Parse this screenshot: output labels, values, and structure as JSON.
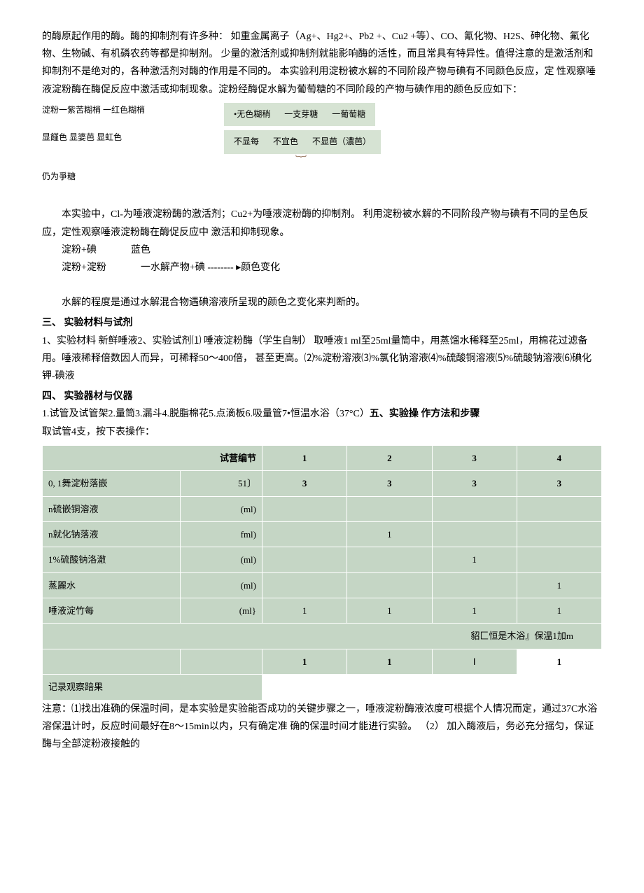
{
  "intro": {
    "p1": "的酶原起作用的酶。酶的抑制剂有许多种：  如重金属离子（Ag+、Hg2+、Pb2 +、Cu2 +等）、CO、氰化物、H2S、砷化物、氟化物、生物碱、有机磷农药等都是抑制剂。  少量的激活剂或抑制剂就能影响酶的活性，而且常具有特异性。值得注意的是激活剂和抑制剂不是绝对的，各种激活剂对酶的作用是不同的。  本实验利用淀粉被水解的不同阶段产物与碘有不同颜色反应，定  性观察唾液淀粉酶在酶促反应中激活或抑制现象。淀粉经酶促水解为葡萄糖的不同阶段的产物与碘作用的颜色反应如下："
  },
  "diagram": {
    "row1_left": "淀粉一紫苦糊梢  一红色糊梢",
    "row1_cells": [
      "•无色糊稍",
      "一支芽糖",
      "一葡萄糖"
    ],
    "row2_left": "显饉色  显婆芭  显虹色",
    "row2_cells": [
      "不显每",
      "不宜色",
      "不显芭（濃芭）"
    ],
    "row3_left": "仍为爭糖"
  },
  "body": {
    "p2": "本实验中，Cl-为唾液淀粉酶的激活剂；Cu2+为唾液淀粉酶的抑制剂。  利用淀粉被水解的不同阶段产物与碘有不同的呈色反应，定性观察唾液淀粉酶在酶促反应中  激活和抑制现象。",
    "p3a": "淀粉+碘",
    "p3a_color": "蓝色",
    "p3b": "淀粉+淀粉",
    "p3b_mid": "一水解产物+碘",
    "p3b_arrow": " -------- ▸",
    "p3b_end": "颜色变化",
    "p4": "水解的程度是通过水解混合物遇碘溶液所呈现的颜色之变化来判断的。"
  },
  "sec3": {
    "head": "三、  实验材料与试剂",
    "p": "1、实验材料 新鲜唾液2、实验试剂⑴ 唾液淀粉酶（学生自制）           取唾液1 ml至25ml量筒中，用蒸馏水稀释至25ml，用棉花过滤备用。唾液稀释倍数因人而异，可稀释50〜400倍，  甚至更高。⑵%淀粉溶液⑶%氯化钠溶液⑷%硫酸铜溶液⑸%硫酸钠溶液⑹碘化钾-碘液"
  },
  "sec4": {
    "head": "四、  实验器材与仪器",
    "p_pre": "1.试管及试管架2.量筒3.漏斗4.脱脂棉花5.点滴板6.吸量管7•恒温水浴（37°C）",
    "inline_head": "五、实验操  作方法和步骤",
    "p2": "取试管4支，按下表操作："
  },
  "table": {
    "header": [
      "试营编节",
      "1",
      "2",
      "3",
      "4"
    ],
    "rows": [
      {
        "label": "0, 1舞淀粉落嵌",
        "unit": "51〕",
        "v": [
          "3",
          "3",
          "3",
          "3"
        ],
        "bold": true
      },
      {
        "label": "n硫嵌铜溶液",
        "unit": "(ml)",
        "v": [
          "",
          "",
          "",
          ""
        ]
      },
      {
        "label": "n就化钠落液",
        "unit": "fml)",
        "v": [
          "",
          "1",
          "",
          ""
        ]
      },
      {
        "label": "1%硫酸钠洛澈",
        "unit": "(ml)",
        "v": [
          "",
          "",
          "1",
          ""
        ]
      },
      {
        "label": "蒸麗水",
        "unit": "(ml)",
        "v": [
          "",
          "",
          "",
          "1"
        ]
      },
      {
        "label": "唾液淀竹每",
        "unit": "(ml}",
        "v": [
          "1",
          "1",
          "1",
          "1"
        ]
      }
    ],
    "span_text": "貂匚恒是木浴』保温1加m",
    "bold_row": {
      "label": "",
      "unit": "",
      "v": [
        "1",
        "1",
        "Ⅰ",
        "1"
      ],
      "last_white": true
    },
    "last_label": "记录观察踣果"
  },
  "notes": {
    "p": "注意：⑴找出准确的保温时间，是本实验是实验能否成功的关键步骤之一，唾液淀粉酶液浓度可根据个人情况而定，通过37C水浴溶保温计时，反应时间最好在8〜15min以内，只有确定准  确的保温时间才能进行实验。  （2）  加入酶液后，务必充分摇匀，保证酶与全部淀粉液接触的"
  },
  "colors": {
    "table_bg": "#c5d6c5",
    "border": "#ffffff"
  }
}
